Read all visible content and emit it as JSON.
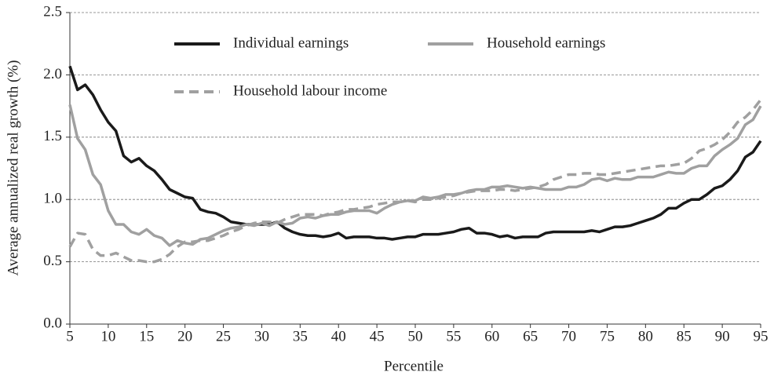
{
  "chart_data": {
    "type": "line",
    "x_label": "Percentile",
    "y_label": "Average annualized real growth (%)",
    "x": [
      5,
      6,
      7,
      8,
      9,
      10,
      11,
      12,
      13,
      14,
      15,
      16,
      17,
      18,
      19,
      20,
      21,
      22,
      23,
      24,
      25,
      26,
      27,
      28,
      29,
      30,
      31,
      32,
      33,
      34,
      35,
      36,
      37,
      38,
      39,
      40,
      41,
      42,
      43,
      44,
      45,
      46,
      47,
      48,
      49,
      50,
      51,
      52,
      53,
      54,
      55,
      56,
      57,
      58,
      59,
      60,
      61,
      62,
      63,
      64,
      65,
      66,
      67,
      68,
      69,
      70,
      71,
      72,
      73,
      74,
      75,
      76,
      77,
      78,
      79,
      80,
      81,
      82,
      83,
      84,
      85,
      86,
      87,
      88,
      89,
      90,
      91,
      92,
      93,
      94,
      95
    ],
    "series": [
      {
        "name": "Individual earnings",
        "color": "#1a1a1a",
        "style": "solid",
        "values": [
          2.07,
          1.88,
          1.92,
          1.84,
          1.72,
          1.62,
          1.55,
          1.35,
          1.3,
          1.33,
          1.27,
          1.23,
          1.16,
          1.08,
          1.05,
          1.02,
          1.01,
          0.92,
          0.9,
          0.89,
          0.86,
          0.82,
          0.81,
          0.8,
          0.8,
          0.8,
          0.8,
          0.82,
          0.77,
          0.74,
          0.72,
          0.71,
          0.71,
          0.7,
          0.71,
          0.73,
          0.69,
          0.7,
          0.7,
          0.7,
          0.69,
          0.69,
          0.68,
          0.69,
          0.7,
          0.7,
          0.72,
          0.72,
          0.72,
          0.73,
          0.74,
          0.76,
          0.77,
          0.73,
          0.73,
          0.72,
          0.7,
          0.71,
          0.69,
          0.7,
          0.7,
          0.7,
          0.73,
          0.74,
          0.74,
          0.74,
          0.74,
          0.74,
          0.75,
          0.74,
          0.76,
          0.78,
          0.78,
          0.79,
          0.81,
          0.83,
          0.85,
          0.88,
          0.93,
          0.93,
          0.97,
          1.0,
          1.0,
          1.04,
          1.09,
          1.11,
          1.16,
          1.23,
          1.34,
          1.38,
          1.47
        ]
      },
      {
        "name": "Household earnings",
        "color": "#a0a0a0",
        "style": "solid",
        "values": [
          1.76,
          1.49,
          1.4,
          1.2,
          1.12,
          0.91,
          0.8,
          0.8,
          0.74,
          0.72,
          0.76,
          0.71,
          0.69,
          0.63,
          0.67,
          0.65,
          0.64,
          0.68,
          0.69,
          0.72,
          0.75,
          0.77,
          0.78,
          0.8,
          0.79,
          0.81,
          0.79,
          0.82,
          0.8,
          0.81,
          0.85,
          0.86,
          0.85,
          0.87,
          0.88,
          0.88,
          0.9,
          0.91,
          0.91,
          0.91,
          0.89,
          0.93,
          0.96,
          0.98,
          0.99,
          0.99,
          1.02,
          1.01,
          1.02,
          1.04,
          1.04,
          1.05,
          1.07,
          1.08,
          1.08,
          1.1,
          1.1,
          1.11,
          1.1,
          1.09,
          1.1,
          1.09,
          1.08,
          1.08,
          1.08,
          1.1,
          1.1,
          1.12,
          1.16,
          1.17,
          1.15,
          1.17,
          1.16,
          1.16,
          1.18,
          1.18,
          1.18,
          1.2,
          1.22,
          1.21,
          1.21,
          1.25,
          1.27,
          1.27,
          1.35,
          1.4,
          1.44,
          1.49,
          1.6,
          1.64,
          1.75
        ]
      },
      {
        "name": "Household labour income",
        "color": "#a0a0a0",
        "style": "dashed",
        "values": [
          0.62,
          0.73,
          0.72,
          0.6,
          0.55,
          0.55,
          0.57,
          0.54,
          0.51,
          0.51,
          0.5,
          0.5,
          0.52,
          0.56,
          0.62,
          0.66,
          0.66,
          0.67,
          0.67,
          0.69,
          0.71,
          0.74,
          0.76,
          0.79,
          0.81,
          0.82,
          0.82,
          0.81,
          0.84,
          0.86,
          0.88,
          0.88,
          0.88,
          0.87,
          0.89,
          0.9,
          0.92,
          0.92,
          0.93,
          0.94,
          0.96,
          0.97,
          0.98,
          0.98,
          0.99,
          0.98,
          1.0,
          1.0,
          1.01,
          1.02,
          1.03,
          1.05,
          1.06,
          1.07,
          1.07,
          1.07,
          1.08,
          1.08,
          1.07,
          1.08,
          1.09,
          1.1,
          1.12,
          1.16,
          1.18,
          1.2,
          1.2,
          1.21,
          1.21,
          1.2,
          1.2,
          1.21,
          1.22,
          1.23,
          1.24,
          1.25,
          1.26,
          1.27,
          1.27,
          1.28,
          1.29,
          1.33,
          1.39,
          1.41,
          1.44,
          1.48,
          1.54,
          1.62,
          1.66,
          1.72,
          1.8
        ]
      }
    ],
    "xlim": [
      5,
      95
    ],
    "xticks": [
      5,
      10,
      15,
      20,
      25,
      30,
      35,
      40,
      45,
      50,
      55,
      60,
      65,
      70,
      75,
      80,
      85,
      90,
      95
    ],
    "ylim": [
      0,
      2.5
    ],
    "yticks": [
      {
        "value": 0,
        "label": "0.0"
      },
      0.5,
      {
        "value": 1,
        "label": "1.0"
      },
      1.5,
      {
        "value": 2,
        "label": "2.0"
      },
      2.5
    ],
    "grid": true,
    "legend": "top"
  }
}
